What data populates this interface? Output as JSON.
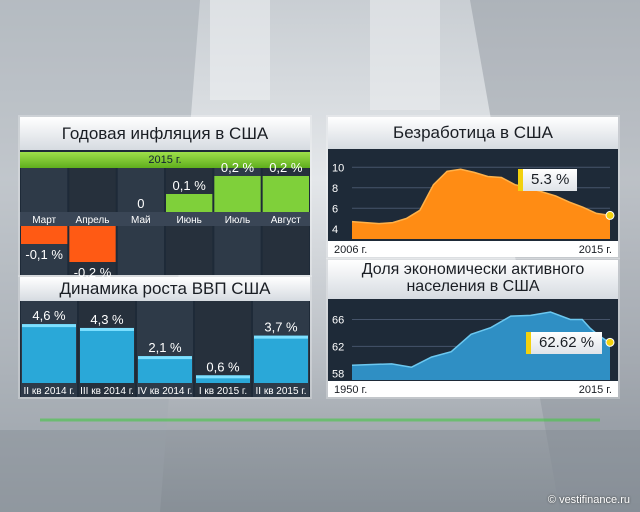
{
  "inflation": {
    "title": "Годовая инфляция в США",
    "year": "2015 г.",
    "chart_data": {
      "type": "bar",
      "title": "Годовая инфляция в США",
      "categories": [
        "Март",
        "Апрель",
        "Май",
        "Июнь",
        "Июль",
        "Август"
      ],
      "values": [
        -0.1,
        -0.2,
        0,
        0.1,
        0.2,
        0.2
      ],
      "value_labels": [
        "-0,1 %",
        "-0,2 %",
        "0",
        "0,1 %",
        "0,2 %",
        "0,2 %"
      ],
      "ylabel": "%",
      "ylim": [
        -0.2,
        0.2
      ]
    }
  },
  "gdp": {
    "title": "Динамика роста ВВП США",
    "chart_data": {
      "type": "bar",
      "title": "Динамика роста ВВП США",
      "categories": [
        "II кв 2014 г.",
        "III кв 2014 г.",
        "IV кв 2014 г.",
        "I кв 2015 г.",
        "II кв 2015 г."
      ],
      "values": [
        4.6,
        4.3,
        2.1,
        0.6,
        3.7
      ],
      "value_labels": [
        "4,6 %",
        "4,3 %",
        "2,1 %",
        "0,6 %",
        "3,7 %"
      ],
      "ylim": [
        0,
        5
      ]
    }
  },
  "unemployment": {
    "title": "Безработица в США",
    "callout": "5.3 %",
    "chart_data": {
      "type": "area",
      "title": "Безработица в США",
      "x_labels": [
        "2006 г.",
        "2015 г."
      ],
      "yticks": [
        4,
        6,
        8,
        10
      ],
      "ylim": [
        3,
        11
      ],
      "x": [
        2006,
        2006.5,
        2007,
        2007.5,
        2008,
        2008.5,
        2009,
        2009.5,
        2010,
        2010.5,
        2011,
        2011.5,
        2012,
        2012.5,
        2013,
        2013.5,
        2014,
        2014.5,
        2015,
        2015.5
      ],
      "values": [
        4.7,
        4.6,
        4.5,
        4.6,
        5.0,
        5.8,
        8.3,
        9.6,
        9.8,
        9.5,
        9.1,
        9.0,
        8.3,
        8.0,
        7.6,
        7.2,
        6.6,
        6.1,
        5.5,
        5.3
      ]
    }
  },
  "participation": {
    "title_line1": "Доля экономически активного",
    "title_line2": "населения в США",
    "callout": "62.62 %",
    "chart_data": {
      "type": "area",
      "title": "Доля экономически активного населения в США",
      "x_labels": [
        "1950 г.",
        "2015 г."
      ],
      "yticks": [
        58,
        62,
        66
      ],
      "ylim": [
        57,
        68
      ],
      "x": [
        1950,
        1955,
        1960,
        1965,
        1970,
        1975,
        1980,
        1985,
        1990,
        1995,
        2000,
        2005,
        2008,
        2010,
        2012,
        2014,
        2015
      ],
      "values": [
        59.2,
        59.3,
        59.4,
        58.9,
        60.4,
        61.2,
        63.8,
        64.8,
        66.5,
        66.6,
        67.1,
        66.0,
        66.0,
        64.7,
        63.7,
        62.9,
        62.6
      ]
    }
  },
  "footer": {
    "watermark": "© vestifinance.ru"
  }
}
